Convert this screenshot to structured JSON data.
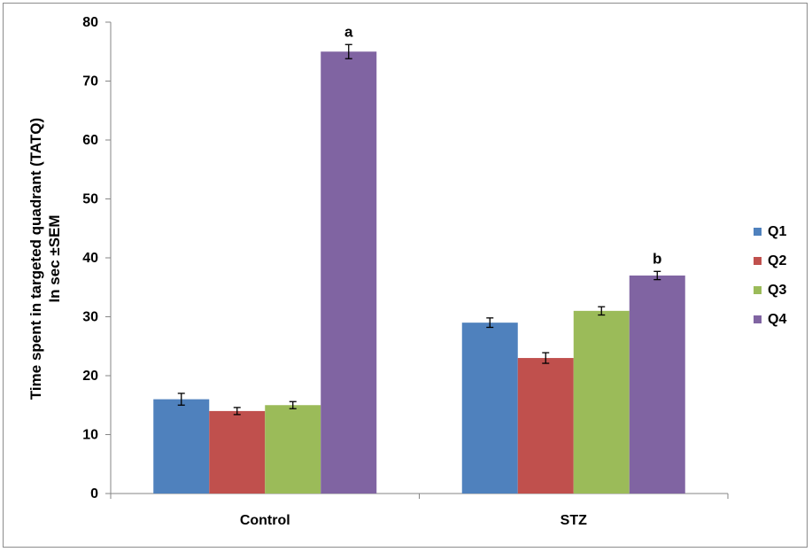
{
  "chart_data": {
    "type": "bar",
    "ylabel_line1": "Time spent in targeted quadrant (TATQ)",
    "ylabel_line2": "In sec ±SEM",
    "xlabel": "",
    "ylim": [
      0,
      80
    ],
    "yticks": [
      0,
      10,
      20,
      30,
      40,
      50,
      60,
      70,
      80
    ],
    "categories": [
      "Control",
      "STZ"
    ],
    "series": [
      {
        "name": "Q1",
        "color": "#4f81bd",
        "values": [
          16,
          29
        ],
        "errors": [
          1.0,
          0.8
        ]
      },
      {
        "name": "Q2",
        "color": "#c0504d",
        "values": [
          14,
          23
        ],
        "errors": [
          0.6,
          0.9
        ]
      },
      {
        "name": "Q3",
        "color": "#9bbb59",
        "values": [
          15,
          31
        ],
        "errors": [
          0.6,
          0.7
        ]
      },
      {
        "name": "Q4",
        "color": "#8064a2",
        "values": [
          75,
          37
        ],
        "errors": [
          1.2,
          0.7
        ]
      }
    ],
    "annotations": [
      {
        "category": "Control",
        "series": "Q4",
        "text": "a"
      },
      {
        "category": "STZ",
        "series": "Q4",
        "text": "b"
      }
    ],
    "legend_position": "right",
    "grid": false
  }
}
